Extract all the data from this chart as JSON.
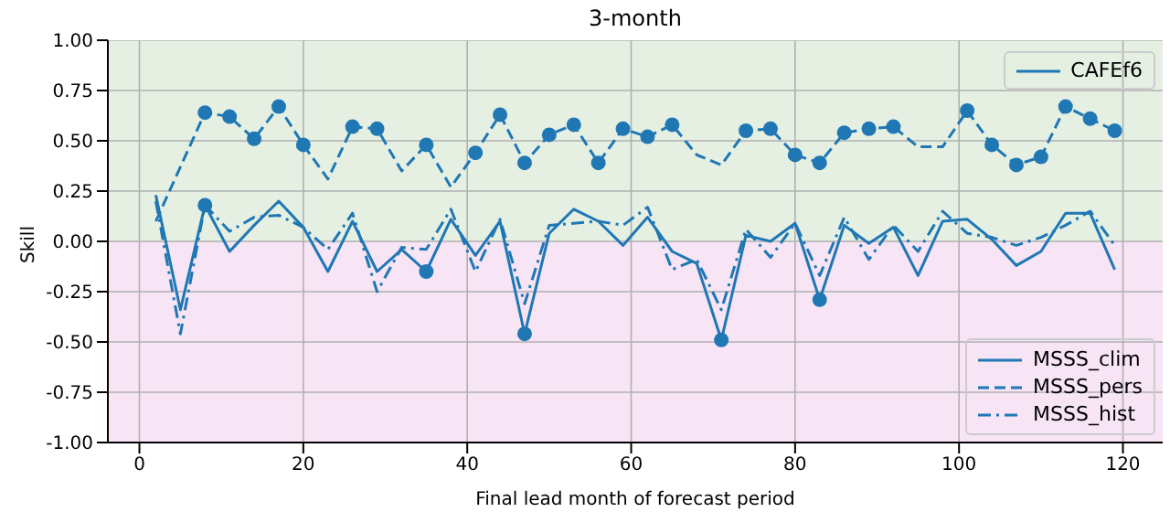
{
  "chart_data": {
    "type": "line",
    "title": "3-month",
    "xlabel": "Final lead month of forecast period",
    "ylabel": "Skill",
    "legend_title": "CAFEf6",
    "legend": "bottom right",
    "grid": true,
    "xlim": [
      -3.85,
      124.85
    ],
    "xticks": [
      0,
      20,
      40,
      60,
      80,
      100,
      120
    ],
    "ylim": [
      -1,
      1
    ],
    "yticks": [
      {
        "value": -1,
        "label": "-1.00"
      },
      {
        "value": -0.75,
        "label": "-0.75"
      },
      {
        "value": -0.5,
        "label": "-0.50"
      },
      {
        "value": -0.25,
        "label": "-0.25"
      },
      {
        "value": 0,
        "label": "0.00"
      },
      {
        "value": 0.25,
        "label": "0.25"
      },
      {
        "value": 0.5,
        "label": "0.50"
      },
      {
        "value": 0.75,
        "label": "0.75"
      },
      {
        "value": 1,
        "label": "1.00"
      }
    ],
    "x": [
      2,
      5,
      8,
      11,
      14,
      17,
      20,
      23,
      26,
      29,
      32,
      35,
      38,
      41,
      44,
      47,
      50,
      53,
      56,
      59,
      62,
      65,
      68,
      71,
      74,
      77,
      80,
      83,
      86,
      89,
      92,
      95,
      98,
      101,
      104,
      107,
      110,
      113,
      116,
      119
    ],
    "bands": [
      {
        "axis": "y",
        "from": 0,
        "to": 1,
        "color": "#e5f0e3"
      },
      {
        "axis": "y",
        "from": -1,
        "to": 0,
        "color": "#f7e4f5"
      }
    ],
    "series": [
      {
        "name": "MSSS_clim",
        "line_style": "solid",
        "marker": "none",
        "color": "#1f77b4",
        "values": [
          0.23,
          -0.34,
          0.18,
          -0.05,
          0.08,
          0.2,
          0.07,
          -0.15,
          0.1,
          -0.15,
          -0.04,
          -0.15,
          0.11,
          -0.07,
          0.1,
          -0.46,
          0.04,
          0.16,
          0.1,
          -0.02,
          0.12,
          -0.05,
          -0.11,
          -0.49,
          0.03,
          0.0,
          0.09,
          -0.29,
          0.08,
          -0.01,
          0.07,
          -0.17,
          0.1,
          0.11,
          0.01,
          -0.12,
          -0.05,
          0.14,
          0.14,
          -0.14
        ]
      },
      {
        "name": "MSSS_pers",
        "line_style": "dashed",
        "marker": "none",
        "color": "#1f77b4",
        "values": [
          0.1,
          0.37,
          0.64,
          0.62,
          0.51,
          0.67,
          0.48,
          0.31,
          0.57,
          0.56,
          0.35,
          0.48,
          0.27,
          0.44,
          0.63,
          0.39,
          0.53,
          0.58,
          0.39,
          0.56,
          0.52,
          0.58,
          0.43,
          0.38,
          0.55,
          0.56,
          0.43,
          0.39,
          0.54,
          0.56,
          0.57,
          0.47,
          0.47,
          0.65,
          0.48,
          0.38,
          0.42,
          0.67,
          0.61,
          0.55
        ]
      },
      {
        "name": "MSSS_hist",
        "line_style": "dashdot",
        "marker": "none",
        "color": "#1f77b4",
        "values": [
          0.2,
          -0.46,
          0.18,
          0.05,
          0.12,
          0.13,
          0.07,
          -0.04,
          0.14,
          -0.25,
          -0.03,
          -0.04,
          0.16,
          -0.15,
          0.11,
          -0.31,
          0.08,
          0.09,
          0.1,
          0.08,
          0.17,
          -0.14,
          -0.09,
          -0.34,
          0.06,
          -0.08,
          0.09,
          -0.17,
          0.12,
          -0.09,
          0.08,
          -0.05,
          0.15,
          0.04,
          0.02,
          -0.02,
          0.02,
          0.08,
          0.15,
          -0.02
        ]
      },
      {
        "type": "scatter",
        "marker": "circle",
        "color": "#1f77b4",
        "x": [
          8,
          11,
          14,
          17,
          20,
          26,
          29,
          35,
          41,
          44,
          47,
          50,
          53,
          56,
          59,
          62,
          65,
          74,
          77,
          80,
          83,
          86,
          89,
          92,
          101,
          104,
          107,
          110,
          113,
          116,
          119
        ],
        "values": [
          0.64,
          0.62,
          0.51,
          0.67,
          0.48,
          0.57,
          0.56,
          0.48,
          0.44,
          0.63,
          0.39,
          0.53,
          0.58,
          0.39,
          0.56,
          0.52,
          0.58,
          0.55,
          0.56,
          0.43,
          0.39,
          0.54,
          0.56,
          0.57,
          0.65,
          0.48,
          0.38,
          0.42,
          0.67,
          0.61,
          0.55
        ]
      },
      {
        "type": "scatter",
        "marker": "circle",
        "color": "#1f77b4",
        "x": [
          8,
          35,
          47,
          71,
          83
        ],
        "values": [
          0.18,
          -0.15,
          -0.46,
          -0.49,
          -0.29
        ]
      }
    ]
  }
}
